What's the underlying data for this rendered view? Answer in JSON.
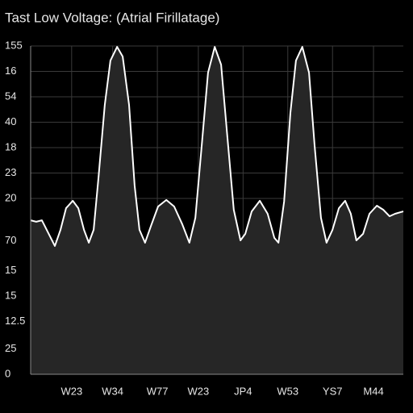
{
  "chart_data": {
    "type": "area",
    "title": "Tast Low Voltage: (Atrial Firillatage)",
    "xlim": [
      0,
      100
    ],
    "ylim": [
      0,
      155
    ],
    "xticks": [
      {
        "value": 11,
        "label": "W23"
      },
      {
        "value": 22,
        "label": "W34"
      },
      {
        "value": 34,
        "label": "W77"
      },
      {
        "value": 45,
        "label": "W23"
      },
      {
        "value": 57,
        "label": "JP4"
      },
      {
        "value": 69,
        "label": "W53"
      },
      {
        "value": 81,
        "label": "YS7"
      },
      {
        "value": 92,
        "label": "M44"
      }
    ],
    "yticks": [
      155,
      {
        "value": 143,
        "label": "16"
      },
      {
        "value": 131,
        "label": "54"
      },
      {
        "value": 119,
        "label": "40"
      },
      {
        "value": 107,
        "label": "18"
      },
      {
        "value": 95,
        "label": "23"
      },
      {
        "value": 83,
        "label": "20"
      },
      {
        "value": 63,
        "label": "70"
      },
      {
        "value": 49,
        "label": "15"
      },
      {
        "value": 37,
        "label": "15"
      },
      {
        "value": 25,
        "label": "12.5"
      },
      {
        "value": 12,
        "label": "25"
      },
      0
    ],
    "grid": true,
    "color": "#ffffff",
    "fill": "#262626",
    "x": [
      0,
      1.5,
      3,
      4.3,
      6.5,
      8,
      9.5,
      11.3,
      12.8,
      14.3,
      15.6,
      16.9,
      18.2,
      19.9,
      21.4,
      23.2,
      24.7,
      26.4,
      27.9,
      29.2,
      30.7,
      32.3,
      34.2,
      36.4,
      38.5,
      40.7,
      42.6,
      44.2,
      45.9,
      47.6,
      49.4,
      51.1,
      52.8,
      54.5,
      56.3,
      57.6,
      59.3,
      61.5,
      63.6,
      65.4,
      66.5,
      68,
      69.7,
      71.2,
      72.9,
      74.7,
      76.2,
      77.9,
      79.4,
      81,
      82.7,
      84.4,
      85.9,
      87.4,
      89.2,
      90.9,
      92.9,
      94.6,
      96.3,
      97.8,
      100
    ],
    "values": [
      72.7,
      72,
      72.7,
      68.2,
      60.6,
      68.2,
      78.4,
      81.9,
      78.4,
      68.2,
      62.1,
      68.2,
      92.9,
      127.2,
      148.1,
      154.6,
      150,
      127.2,
      89.1,
      68.2,
      62.1,
      70.1,
      79.2,
      82.3,
      79.2,
      70.8,
      62.1,
      73.9,
      108.1,
      142.4,
      154.6,
      146.2,
      112,
      77.7,
      63.2,
      66.3,
      76.9,
      81.9,
      75.8,
      64.4,
      62.1,
      81.5,
      123.4,
      148.1,
      154.6,
      142.4,
      108.1,
      73.9,
      62.1,
      68.2,
      78.4,
      81.9,
      75.8,
      63.2,
      66.3,
      75.8,
      79.6,
      77.7,
      74.6,
      75.8,
      76.9
    ]
  }
}
